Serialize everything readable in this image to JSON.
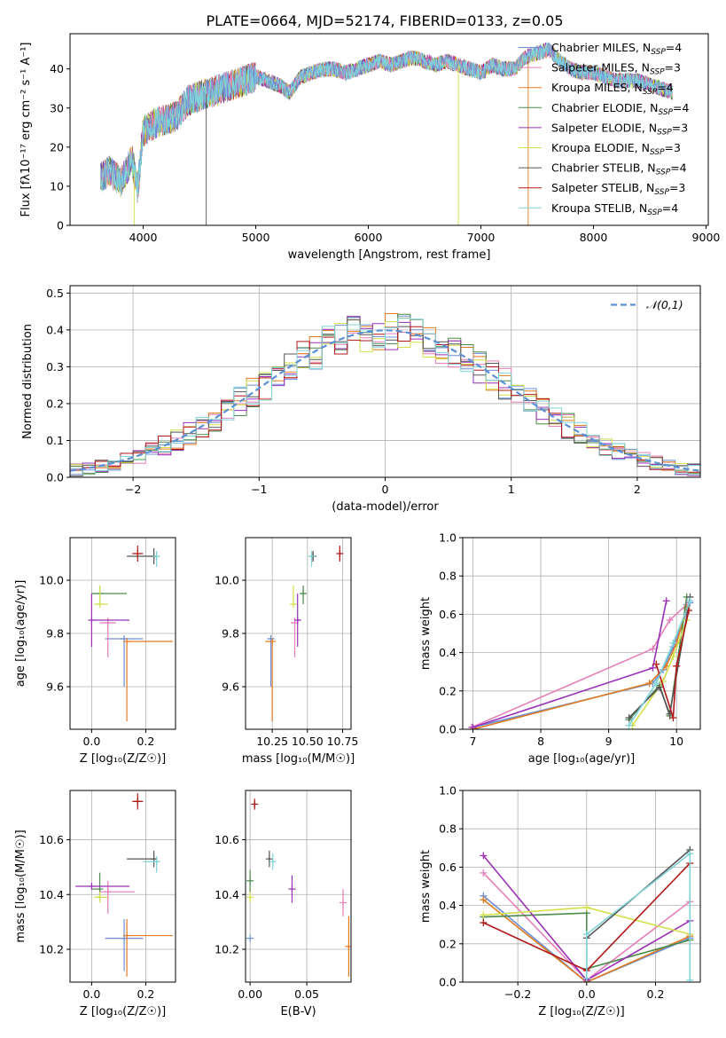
{
  "figure": {
    "title": "PLATE=0664, MJD=52174, FIBERID=0133, z=0.05"
  },
  "colors": {
    "series": [
      "#6a8fd8",
      "#e67fb9",
      "#e07b1f",
      "#4d8a4d",
      "#9b30b8",
      "#d2e04a",
      "#555555",
      "#b01717",
      "#7fd3d9"
    ],
    "gaussian": "#5b8fd6",
    "grid": "#b0b0b0"
  },
  "chart_data": [
    {
      "id": "spectrum",
      "type": "line",
      "title": "PLATE=0664, MJD=52174, FIBERID=0133, z=0.05",
      "xlabel": "wavelength [Angstrom, rest frame]",
      "ylabel": "Flux [fλ10⁻¹⁷ erg cm⁻² s⁻¹ A⁻¹]",
      "xlim": [
        3350,
        9020
      ],
      "ylim": [
        0,
        49
      ],
      "xticks": [
        4000,
        5000,
        6000,
        7000,
        8000,
        9000
      ],
      "yticks": [
        0,
        10,
        20,
        30,
        40
      ],
      "grid": false,
      "legend_position": "top-right",
      "legend": [
        "Chabrier MILES, N_SSP=4",
        "Salpeter MILES, N_SSP=3",
        "Kroupa MILES, N_SSP=4",
        "Chabrier ELODIE, N_SSP=4",
        "Salpeter ELODIE, N_SSP=3",
        "Kroupa ELODIE, N_SSP=3",
        "Chabrier STELIB, N_SSP=4",
        "Salpeter STELIB, N_SSP=3",
        "Kroupa STELIB, N_SSP=4"
      ],
      "continuum": {
        "x": [
          3620,
          3700,
          3800,
          3900,
          3950,
          4000,
          4100,
          4200,
          4300,
          4400,
          4500,
          4600,
          4700,
          4800,
          4900,
          5000,
          5100,
          5200,
          5300,
          5400,
          5500,
          5600,
          5700,
          5800,
          5900,
          6000,
          6100,
          6200,
          6300,
          6400,
          6500,
          6600,
          6700,
          6800,
          6900,
          7000,
          7100,
          7200,
          7300,
          7400,
          7500,
          7600,
          7700,
          7800,
          7900,
          8000,
          8100,
          8200,
          8300,
          8400,
          8500,
          8600,
          8700
        ],
        "y": [
          12,
          14,
          11,
          17,
          9,
          24,
          26,
          27,
          28,
          32,
          33,
          34,
          35,
          36,
          37,
          38,
          37,
          36,
          34,
          38,
          39,
          40,
          40,
          39,
          40,
          41,
          42,
          41,
          42,
          43,
          42,
          41,
          42,
          41,
          40,
          39,
          41,
          40,
          40,
          43,
          44,
          45,
          42,
          40,
          39,
          39,
          38,
          37,
          37,
          37,
          36,
          35,
          34
        ]
      },
      "dropouts": [
        {
          "series": 6,
          "x": 4560,
          "to": 0
        },
        {
          "series": 5,
          "x": 3920,
          "to": 0
        },
        {
          "series": 5,
          "x": 6800,
          "to": 0
        },
        {
          "series": 2,
          "x": 7420,
          "to": 0
        }
      ],
      "spectrum_end": {
        "2": 7420
      }
    },
    {
      "id": "residuals",
      "type": "bar",
      "xlabel": "(data-model)/error",
      "ylabel": "Normed distribution",
      "xlim": [
        -2.5,
        2.5
      ],
      "ylim": [
        0,
        0.52
      ],
      "xticks": [
        -2,
        -1,
        0,
        1,
        2
      ],
      "yticks": [
        0,
        0.1,
        0.2,
        0.3,
        0.4,
        0.5
      ],
      "grid": true,
      "legend_position": "top-right",
      "legend": [
        "𝒩(0,1)"
      ],
      "bin_edges": [
        -2.5,
        2.5
      ],
      "bins": 50
    },
    {
      "id": "age_vs_Z",
      "type": "scatter",
      "xlabel": "Z [log₁₀(Z/Z☉)]",
      "ylabel": "age  [log₁₀(age/yr)]",
      "xlim": [
        -0.08,
        0.31
      ],
      "ylim": [
        9.44,
        10.16
      ],
      "xticks": [
        0,
        0.2
      ],
      "yticks": [
        9.6,
        9.8,
        10.0
      ],
      "grid": true,
      "points": [
        {
          "series": 0,
          "x": 0.12,
          "y": 9.78,
          "xerr": [
            0.07,
            0.07
          ],
          "yerr": [
            0.18,
            0.0
          ]
        },
        {
          "series": 1,
          "x": 0.06,
          "y": 9.84,
          "xerr": [
            0.03,
            0.03
          ],
          "yerr": [
            0.13,
            0.02
          ]
        },
        {
          "series": 2,
          "x": 0.13,
          "y": 9.77,
          "xerr": [
            0.0,
            0.17
          ],
          "yerr": [
            0.3,
            0.0
          ]
        },
        {
          "series": 3,
          "x": 0.03,
          "y": 9.95,
          "xerr": [
            0.03,
            0.1
          ],
          "yerr": [
            0.04,
            0.03
          ]
        },
        {
          "series": 4,
          "x": 0.0,
          "y": 9.85,
          "xerr": [
            0.0,
            0.14
          ],
          "yerr": [
            0.1,
            0.1
          ]
        },
        {
          "series": 5,
          "x": 0.03,
          "y": 9.91,
          "xerr": [
            0.02,
            0.03
          ],
          "yerr": [
            0.0,
            0.07
          ]
        },
        {
          "series": 6,
          "x": 0.23,
          "y": 10.09,
          "xerr": [
            0.1,
            0.01
          ],
          "yerr": [
            0.03,
            0.03
          ]
        },
        {
          "series": 7,
          "x": 0.17,
          "y": 10.1,
          "xerr": [
            0.02,
            0.02
          ],
          "yerr": [
            0.03,
            0.03
          ]
        },
        {
          "series": 8,
          "x": 0.24,
          "y": 10.09,
          "xerr": [
            0.01,
            0.01
          ],
          "yerr": [
            0.04,
            0.02
          ]
        }
      ]
    },
    {
      "id": "age_vs_mass",
      "type": "scatter",
      "xlabel": "mass [log₁₀(M/M☉)]",
      "ylabel": "",
      "xlim": [
        10.06,
        10.81
      ],
      "ylim": [
        9.44,
        10.16
      ],
      "xticks": [
        10.25,
        10.5,
        10.75
      ],
      "yticks": [
        9.6,
        9.8,
        10.0
      ],
      "grid": true,
      "points": [
        {
          "series": 0,
          "x": 10.24,
          "y": 9.78,
          "xerr": [
            0.02,
            0.02
          ],
          "yerr": [
            0.18,
            0.0
          ]
        },
        {
          "series": 1,
          "x": 10.41,
          "y": 9.84,
          "xerr": [
            0.03,
            0.0
          ],
          "yerr": [
            0.13,
            0.02
          ]
        },
        {
          "series": 2,
          "x": 10.25,
          "y": 9.77,
          "xerr": [
            0.05,
            0.0
          ],
          "yerr": [
            0.3,
            0.0
          ]
        },
        {
          "series": 3,
          "x": 10.47,
          "y": 9.95,
          "xerr": [
            0.02,
            0.02
          ],
          "yerr": [
            0.04,
            0.03
          ]
        },
        {
          "series": 4,
          "x": 10.43,
          "y": 9.85,
          "xerr": [
            0.01,
            0.02
          ],
          "yerr": [
            0.1,
            0.1
          ]
        },
        {
          "series": 5,
          "x": 10.4,
          "y": 9.91,
          "xerr": [
            0.0,
            0.0
          ],
          "yerr": [
            0.0,
            0.07
          ]
        },
        {
          "series": 6,
          "x": 10.54,
          "y": 10.09,
          "xerr": [
            0.01,
            0.01
          ],
          "yerr": [
            0.02,
            0.02
          ]
        },
        {
          "series": 7,
          "x": 10.73,
          "y": 10.1,
          "xerr": [
            0.01,
            0.01
          ],
          "yerr": [
            0.03,
            0.03
          ]
        },
        {
          "series": 8,
          "x": 10.53,
          "y": 10.09,
          "xerr": [
            0.02,
            0.01
          ],
          "yerr": [
            0.04,
            0.02
          ]
        }
      ]
    },
    {
      "id": "weights_vs_age",
      "type": "line",
      "xlabel": "age  [log₁₀(age/yr)]",
      "ylabel": "mass weight",
      "xlim": [
        6.85,
        10.35
      ],
      "ylim": [
        0,
        1.0
      ],
      "xticks": [
        7,
        8,
        9,
        10
      ],
      "yticks": [
        0.0,
        0.2,
        0.4,
        0.6,
        0.8,
        1.0
      ],
      "grid": true,
      "series": [
        {
          "series": 0,
          "x": [
            7.0,
            9.65,
            9.8,
            9.95,
            10.2
          ],
          "y": [
            0.01,
            0.24,
            0.31,
            0.43,
            0.66
          ]
        },
        {
          "series": 1,
          "x": [
            6.98,
            9.65,
            9.9,
            10.15
          ],
          "y": [
            0.01,
            0.42,
            0.57,
            0.65
          ]
        },
        {
          "series": 2,
          "x": [
            7.0,
            9.6,
            9.85,
            10.0,
            10.15
          ],
          "y": [
            0.0,
            0.24,
            0.33,
            0.45,
            0.63
          ]
        },
        {
          "series": 3,
          "x": [
            9.3,
            9.75,
            9.9,
            10.15
          ],
          "y": [
            0.05,
            0.23,
            0.07,
            0.69
          ]
        },
        {
          "series": 4,
          "x": [
            7.0,
            9.65,
            9.85
          ],
          "y": [
            0.01,
            0.32,
            0.67
          ]
        },
        {
          "series": 5,
          "x": [
            9.35,
            9.8,
            9.95,
            10.15
          ],
          "y": [
            0.02,
            0.25,
            0.38,
            0.57
          ]
        },
        {
          "series": 6,
          "x": [
            9.3,
            9.75,
            9.9,
            10.2
          ],
          "y": [
            0.06,
            0.22,
            0.08,
            0.69
          ]
        },
        {
          "series": 7,
          "x": [
            9.7,
            9.95,
            10.0,
            10.18
          ],
          "y": [
            0.34,
            0.06,
            0.33,
            0.62
          ]
        },
        {
          "series": 8,
          "x": [
            9.3,
            9.7,
            9.95,
            10.2
          ],
          "y": [
            0.02,
            0.24,
            0.45,
            0.67
          ]
        }
      ]
    },
    {
      "id": "mass_vs_Z",
      "type": "scatter",
      "xlabel": "Z [log₁₀(Z/Z☉)]",
      "ylabel": "mass [log₁₀(M/M☉)]",
      "xlim": [
        -0.08,
        0.31
      ],
      "ylim": [
        10.08,
        10.78
      ],
      "xticks": [
        0,
        0.2
      ],
      "yticks": [
        10.2,
        10.4,
        10.6
      ],
      "grid": true,
      "points": [
        {
          "series": 0,
          "x": 0.12,
          "y": 10.24,
          "xerr": [
            0.07,
            0.07
          ],
          "yerr": [
            0.12,
            0.07
          ]
        },
        {
          "series": 1,
          "x": 0.06,
          "y": 10.41,
          "xerr": [
            0.03,
            0.1
          ],
          "yerr": [
            0.08,
            0.04
          ]
        },
        {
          "series": 2,
          "x": 0.13,
          "y": 10.25,
          "xerr": [
            0.0,
            0.17
          ],
          "yerr": [
            0.15,
            0.06
          ]
        },
        {
          "series": 3,
          "x": 0.03,
          "y": 10.42,
          "xerr": [
            0.03,
            0.0
          ],
          "yerr": [
            0.04,
            0.06
          ]
        },
        {
          "series": 4,
          "x": 0.0,
          "y": 10.43,
          "xerr": [
            0.06,
            0.14
          ],
          "yerr": [
            0.0,
            0.0
          ]
        },
        {
          "series": 5,
          "x": 0.03,
          "y": 10.39,
          "xerr": [
            0.02,
            0.03
          ],
          "yerr": [
            0.02,
            0.02
          ]
        },
        {
          "series": 6,
          "x": 0.23,
          "y": 10.53,
          "xerr": [
            0.1,
            0.01
          ],
          "yerr": [
            0.03,
            0.03
          ]
        },
        {
          "series": 7,
          "x": 0.17,
          "y": 10.74,
          "xerr": [
            0.02,
            0.02
          ],
          "yerr": [
            0.03,
            0.03
          ]
        },
        {
          "series": 8,
          "x": 0.24,
          "y": 10.52,
          "xerr": [
            0.05,
            0.01
          ],
          "yerr": [
            0.04,
            0.02
          ]
        }
      ]
    },
    {
      "id": "mass_vs_ebv",
      "type": "scatter",
      "xlabel": "E(B-V)",
      "ylabel": "",
      "xlim": [
        -0.004,
        0.089
      ],
      "ylim": [
        10.08,
        10.78
      ],
      "xticks": [
        0.0,
        0.05
      ],
      "yticks": [
        10.2,
        10.4,
        10.6
      ],
      "grid": true,
      "points": [
        {
          "series": 0,
          "x": 0.0,
          "y": 10.24,
          "xerr": [
            0,
            0
          ],
          "yerr": [
            0.0,
            0.0
          ]
        },
        {
          "series": 1,
          "x": 0.082,
          "y": 10.37,
          "xerr": [
            0,
            0
          ],
          "yerr": [
            0.05,
            0.05
          ]
        },
        {
          "series": 2,
          "x": 0.087,
          "y": 10.21,
          "xerr": [
            0,
            0
          ],
          "yerr": [
            0.11,
            0.11
          ]
        },
        {
          "series": 3,
          "x": 0.0,
          "y": 10.45,
          "xerr": [
            0,
            0
          ],
          "yerr": [
            0.04,
            0.04
          ]
        },
        {
          "series": 4,
          "x": 0.037,
          "y": 10.42,
          "xerr": [
            0,
            0
          ],
          "yerr": [
            0.05,
            0.05
          ]
        },
        {
          "series": 5,
          "x": 0.0,
          "y": 10.39,
          "xerr": [
            0,
            0
          ],
          "yerr": [
            0.02,
            0.02
          ]
        },
        {
          "series": 6,
          "x": 0.017,
          "y": 10.53,
          "xerr": [
            0,
            0
          ],
          "yerr": [
            0.03,
            0.03
          ]
        },
        {
          "series": 7,
          "x": 0.004,
          "y": 10.73,
          "xerr": [
            0,
            0
          ],
          "yerr": [
            0.02,
            0.02
          ]
        },
        {
          "series": 8,
          "x": 0.02,
          "y": 10.52,
          "xerr": [
            0,
            0
          ],
          "yerr": [
            0.03,
            0.03
          ]
        }
      ]
    },
    {
      "id": "weights_vs_Z",
      "type": "line",
      "xlabel": "Z [log₁₀(Z/Z☉)]",
      "ylabel": "mass weight",
      "xlim": [
        -0.36,
        0.33
      ],
      "ylim": [
        0,
        1.0
      ],
      "xticks": [
        -0.2,
        0.0,
        0.2
      ],
      "yticks": [
        0.0,
        0.2,
        0.4,
        0.6,
        0.8,
        1.0
      ],
      "grid": true,
      "series": [
        {
          "series": 0,
          "x": [
            -0.3,
            0.0,
            0.3
          ],
          "y": [
            0.45,
            0.0,
            0.23
          ]
        },
        {
          "series": 1,
          "x": [
            -0.3,
            0.0,
            0.3
          ],
          "y": [
            0.57,
            0.01,
            0.42
          ]
        },
        {
          "series": 2,
          "x": [
            -0.3,
            0.0,
            0.3
          ],
          "y": [
            0.43,
            0.0,
            0.24
          ]
        },
        {
          "series": 3,
          "x": [
            -0.3,
            0.0,
            0.0,
            0.3
          ],
          "y": [
            0.34,
            0.36,
            0.07,
            0.22
          ]
        },
        {
          "series": 4,
          "x": [
            -0.3,
            0.0,
            0.3
          ],
          "y": [
            0.66,
            0.01,
            0.32
          ]
        },
        {
          "series": 5,
          "x": [
            -0.3,
            0.0,
            0.3
          ],
          "y": [
            0.35,
            0.39,
            0.25
          ]
        },
        {
          "series": 6,
          "x": [
            0.0,
            0.3
          ],
          "y": [
            0.23,
            0.69
          ]
        },
        {
          "series": 7,
          "x": [
            -0.3,
            0.0,
            0.3
          ],
          "y": [
            0.31,
            0.06,
            0.62
          ]
        },
        {
          "series": 8,
          "x": [
            0.0,
            0.0,
            0.3,
            0.3
          ],
          "y": [
            0.02,
            0.25,
            0.67,
            0.01
          ]
        }
      ]
    }
  ]
}
